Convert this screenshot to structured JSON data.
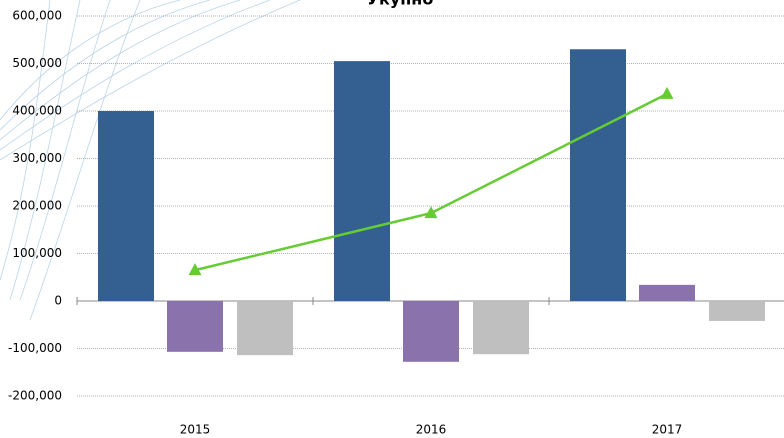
{
  "chart_data": {
    "type": "bar",
    "title": "Укупно",
    "categories": [
      "2015",
      "2016",
      "2017"
    ],
    "series": [
      {
        "color": "#335f91",
        "values": [
          400000,
          505000,
          530000
        ]
      },
      {
        "color": "#8a72ad",
        "values": [
          -107000,
          -128000,
          34000
        ]
      },
      {
        "color": "#bfbfbf",
        "values": [
          -114000,
          -112000,
          -42000
        ]
      },
      {
        "type": "line",
        "color": "#66cc33",
        "values": [
          65000,
          185000,
          436000
        ]
      }
    ],
    "ylim": [
      -200000,
      600000
    ],
    "yticks": [
      {
        "value": -200000,
        "label": "-200,000"
      },
      {
        "value": -100000,
        "label": "-100,000"
      },
      0,
      {
        "value": 100000,
        "label": "100,000"
      },
      {
        "value": 200000,
        "label": "200,000"
      },
      {
        "value": 300000,
        "label": "300,000"
      },
      {
        "value": 400000,
        "label": "400,000"
      },
      {
        "value": 500000,
        "label": "500,000"
      },
      {
        "value": 600000,
        "label": "600,000"
      }
    ],
    "grid": true
  }
}
